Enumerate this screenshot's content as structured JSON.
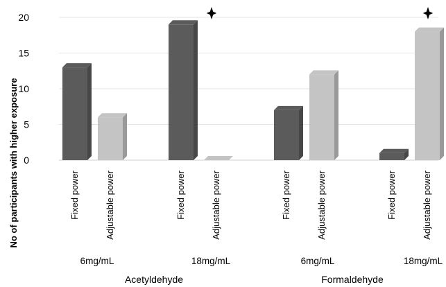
{
  "chart_data": {
    "type": "bar",
    "ylabel": "No of participants with higher exposure",
    "ylim": [
      0,
      20
    ],
    "yticks": [
      0,
      5,
      10,
      15,
      20
    ],
    "grid": true,
    "categories": [
      "Fixed power",
      "Adjustable power",
      "Fixed power",
      "Adjustable power",
      "Fixed power",
      "Adjustable power",
      "Fixed power",
      "Adjustable power"
    ],
    "values": [
      13,
      6,
      19,
      0,
      7,
      12,
      1,
      18
    ],
    "concentration_labels": [
      "6mg/mL",
      "18mg/mL",
      "6mg/mL",
      "18mg/mL"
    ],
    "compound_labels": [
      "Acetyldehyde",
      "Formaldehyde"
    ],
    "significance_markers": [
      {
        "concentration": "18mg/mL",
        "compound": "Acetyldehyde",
        "symbol": "✦"
      },
      {
        "concentration": "18mg/mL",
        "compound": "Formaldehyde",
        "symbol": "✦"
      }
    ],
    "colors": {
      "Fixed power": "#5b5b5b",
      "Adjustable power": "#c4c4c4"
    }
  }
}
